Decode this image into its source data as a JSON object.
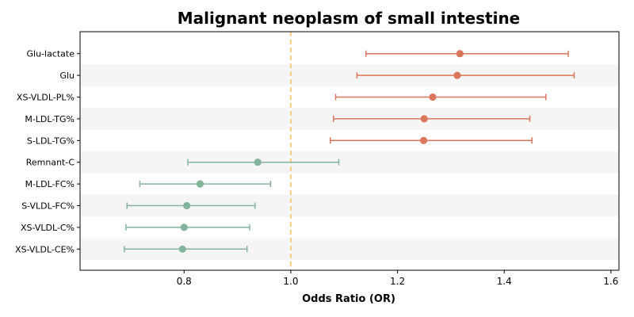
{
  "chart_data": {
    "type": "forest",
    "title": "Malignant neoplasm of small intestine",
    "xlabel": "Odds Ratio (OR)",
    "ylabel": "",
    "xlim": [
      0.605,
      1.615
    ],
    "xticks": [
      0.8,
      1.0,
      1.2,
      1.4,
      1.6
    ],
    "xtick_labels": [
      "0.8",
      "1.0",
      "1.2",
      "1.4",
      "1.6"
    ],
    "reference_line": 1.0,
    "reference_color": "#f5c36b",
    "positive_color": "#d9765b",
    "negative_color": "#82b59b",
    "stripe_color": "#f5f5f5",
    "grid": false,
    "rows": [
      {
        "label": "Glu-lactate",
        "or": 1.317,
        "lower": 1.141,
        "upper": 1.52
      },
      {
        "label": "Glu",
        "or": 1.312,
        "lower": 1.124,
        "upper": 1.531
      },
      {
        "label": "XS-VLDL-PL%",
        "or": 1.266,
        "lower": 1.084,
        "upper": 1.478
      },
      {
        "label": "M-LDL-TG%",
        "or": 1.25,
        "lower": 1.08,
        "upper": 1.448
      },
      {
        "label": "S-LDL-TG%",
        "or": 1.249,
        "lower": 1.074,
        "upper": 1.452
      },
      {
        "label": "Remnant-C",
        "or": 0.938,
        "lower": 0.807,
        "upper": 1.09
      },
      {
        "label": "M-LDL-FC%",
        "or": 0.83,
        "lower": 0.717,
        "upper": 0.962
      },
      {
        "label": "S-VLDL-FC%",
        "or": 0.805,
        "lower": 0.693,
        "upper": 0.933
      },
      {
        "label": "XS-VLDL-C%",
        "or": 0.8,
        "lower": 0.691,
        "upper": 0.923
      },
      {
        "label": "XS-VLDL-CE%",
        "or": 0.797,
        "lower": 0.688,
        "upper": 0.918
      }
    ]
  }
}
